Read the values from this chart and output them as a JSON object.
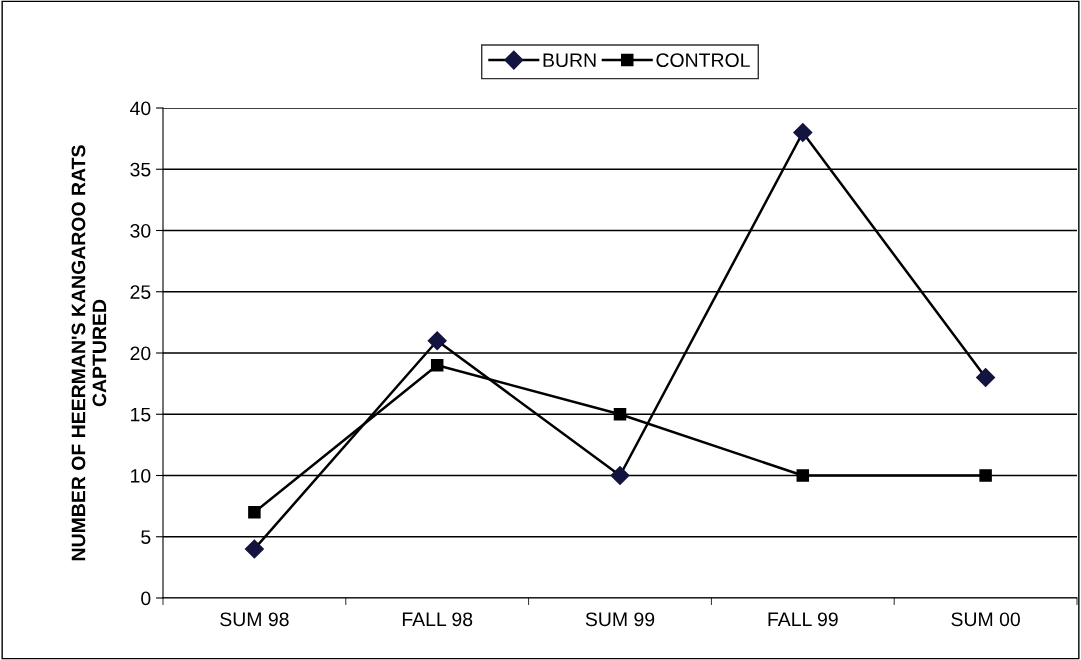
{
  "chart_data": {
    "type": "line",
    "ylabel": "NUMBER OF HEERMAN'S KANGAROO RATS\nCAPTURED",
    "categories": [
      "SUM 98",
      "FALL 98",
      "SUM 99",
      "FALL 99",
      "SUM 00"
    ],
    "series": [
      {
        "name": "BURN",
        "color": "#141440",
        "values": [
          4,
          21,
          10,
          38,
          18
        ],
        "marker": "diamond"
      },
      {
        "name": "CONTROL",
        "color": "#000000",
        "values": [
          7,
          19,
          15,
          10,
          10
        ],
        "marker": "square"
      }
    ],
    "ylim": [
      0,
      40
    ],
    "yticks": [
      0,
      5,
      10,
      15,
      20,
      25,
      30,
      35,
      40
    ],
    "grid": "y",
    "legend": "top",
    "line_style": "solid"
  }
}
